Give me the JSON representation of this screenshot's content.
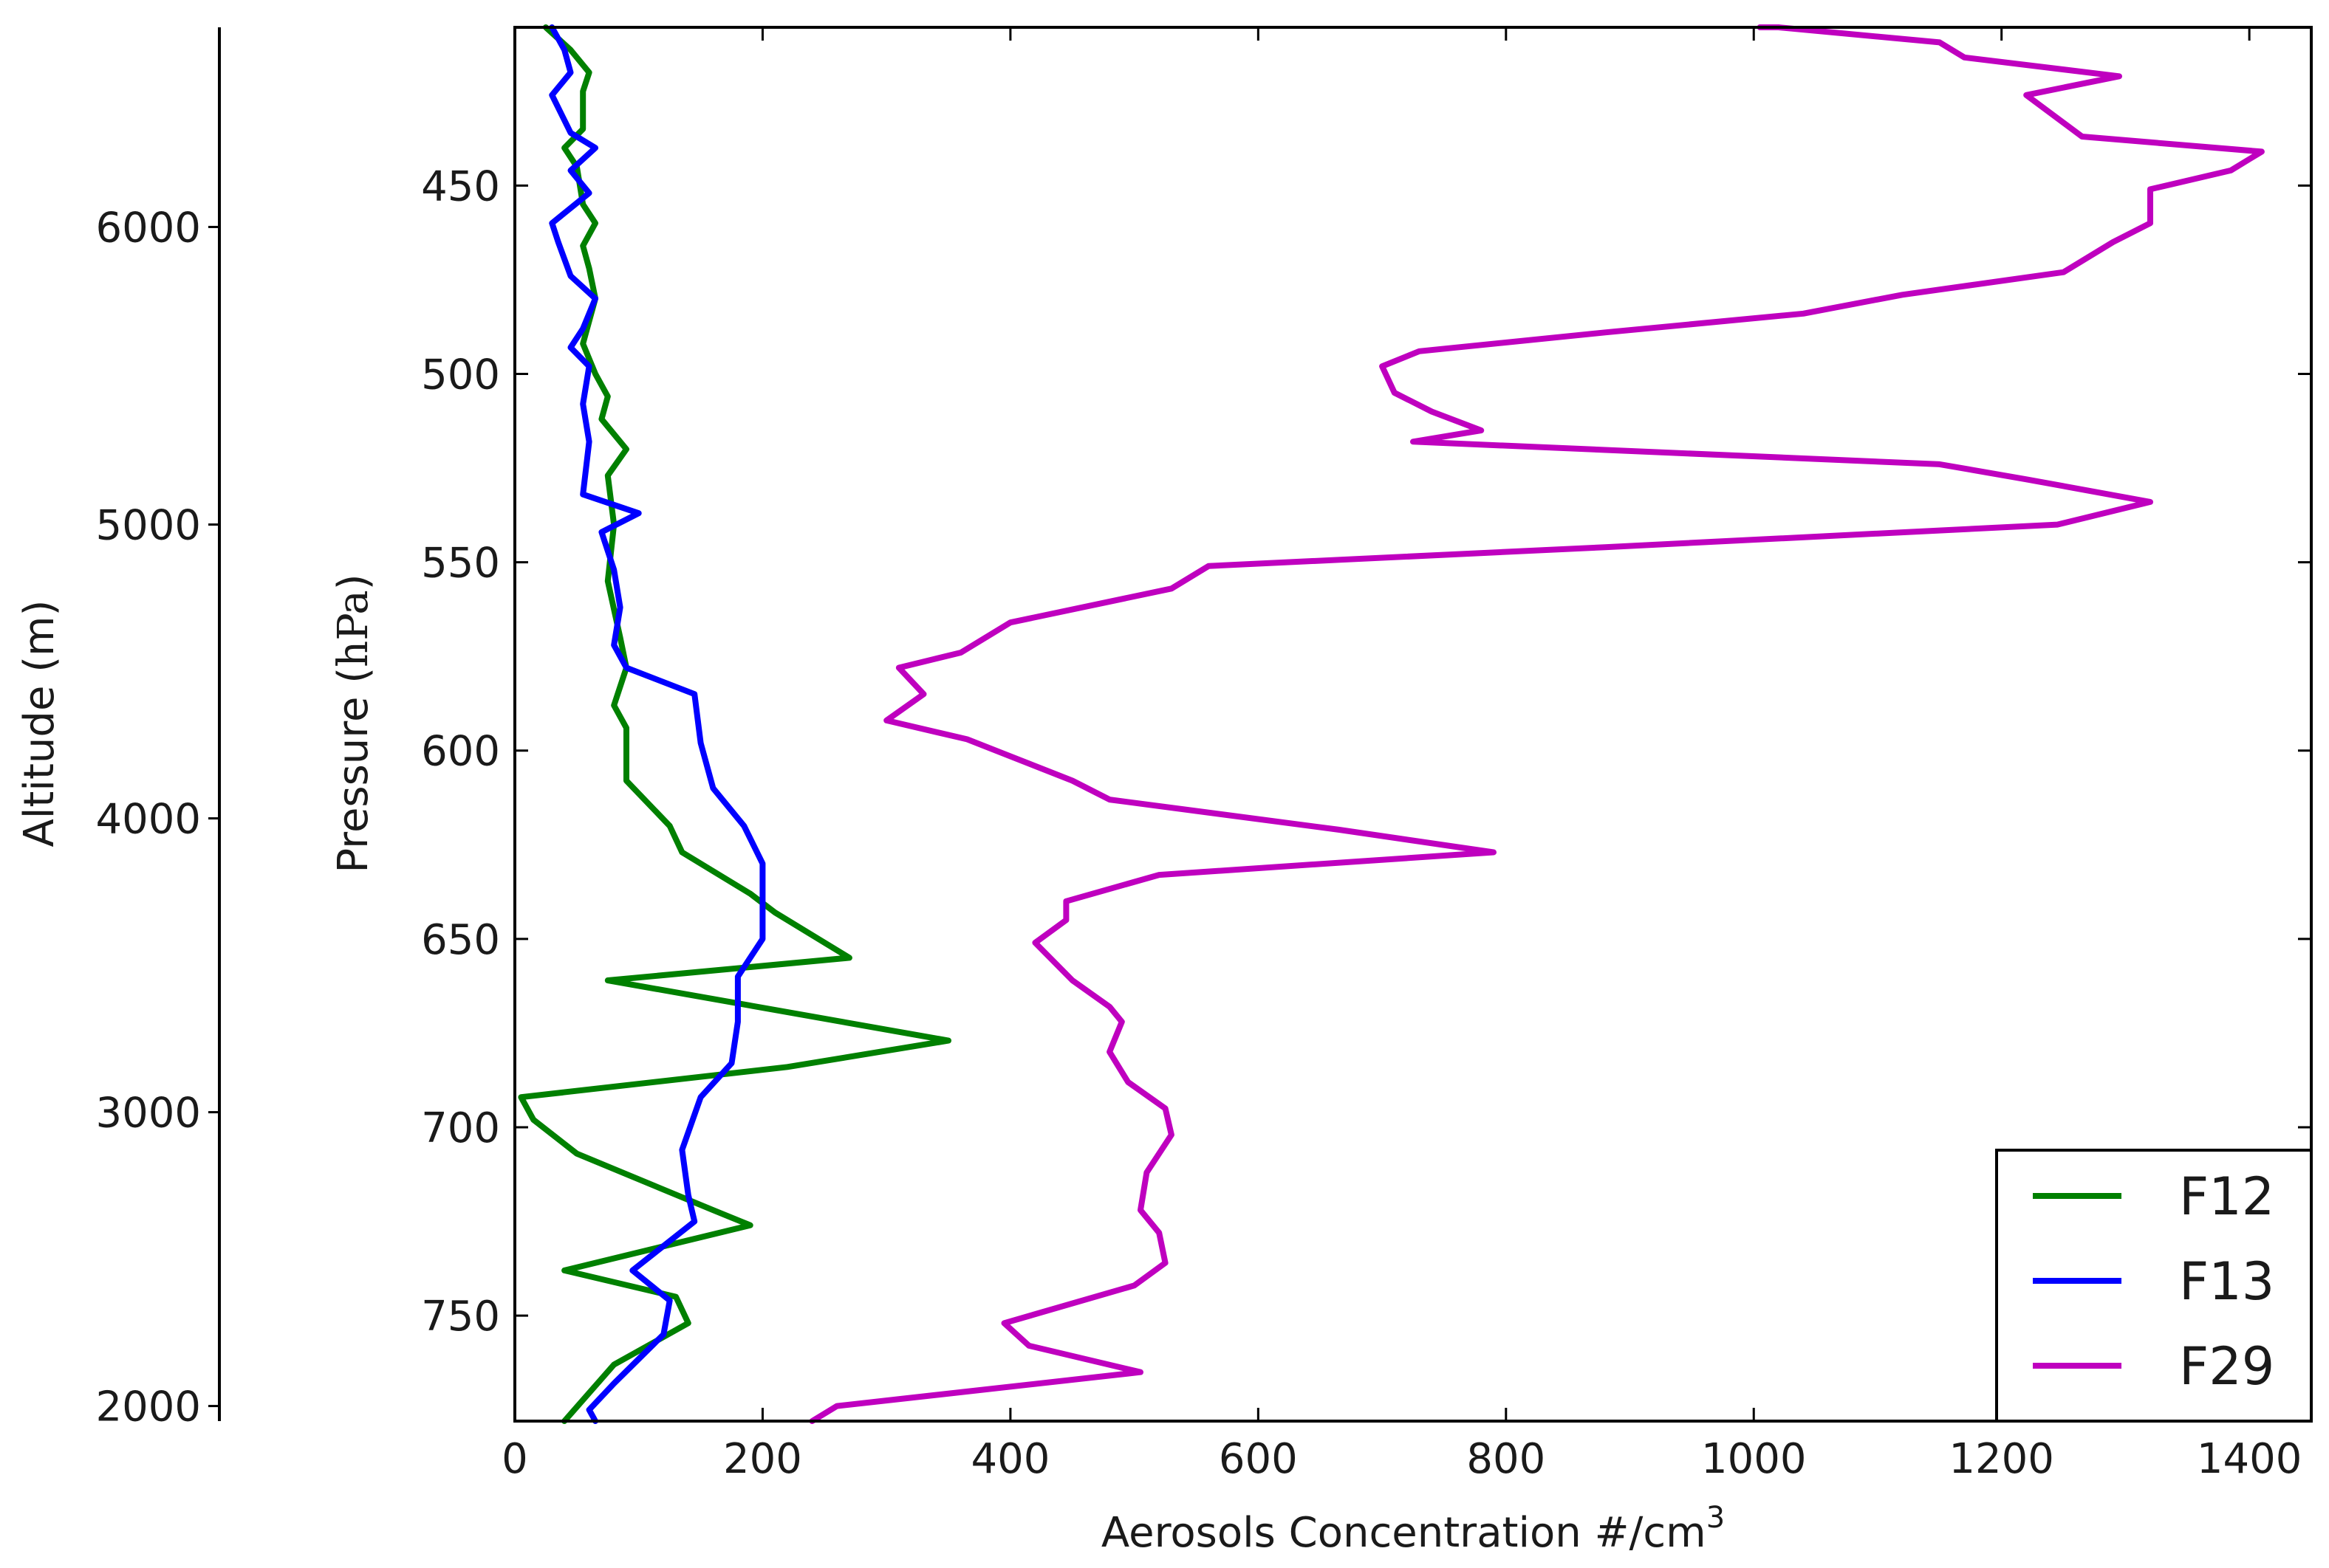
{
  "chart_data": {
    "type": "line",
    "xlabel": "Aerosols Concentration #/cm",
    "xlabel_superscript": "3",
    "ylabel_prefix": "Pressure (",
    "ylabel_unit": "hPa",
    "ylabel_suffix": ")",
    "y2label": "Altitude (m)",
    "xlim": [
      0,
      1450
    ],
    "ylim": [
      408,
      778
    ],
    "y_inverted": true,
    "x_ticks": [
      0,
      200,
      400,
      600,
      800,
      1000,
      1200,
      1400
    ],
    "y_ticks": [
      450,
      500,
      550,
      600,
      650,
      700,
      750
    ],
    "altitude_ticks": [
      {
        "label": "6000",
        "pressure": 461
      },
      {
        "label": "5000",
        "pressure": 540
      },
      {
        "label": "4000",
        "pressure": 618
      },
      {
        "label": "3000",
        "pressure": 696
      },
      {
        "label": "2000",
        "pressure": 774
      }
    ],
    "grid": false,
    "legend_position": "bottom-right",
    "series": [
      {
        "name": "F12",
        "color": "#008000",
        "points": [
          [
            25,
            408
          ],
          [
            45,
            414
          ],
          [
            60,
            420
          ],
          [
            55,
            425
          ],
          [
            55,
            435
          ],
          [
            40,
            440
          ],
          [
            50,
            445
          ],
          [
            55,
            455
          ],
          [
            65,
            460
          ],
          [
            55,
            466
          ],
          [
            60,
            472
          ],
          [
            65,
            480
          ],
          [
            55,
            492
          ],
          [
            65,
            500
          ],
          [
            75,
            506
          ],
          [
            70,
            512
          ],
          [
            90,
            520
          ],
          [
            75,
            527
          ],
          [
            80,
            540
          ],
          [
            75,
            555
          ],
          [
            85,
            570
          ],
          [
            90,
            578
          ],
          [
            80,
            588
          ],
          [
            90,
            594
          ],
          [
            90,
            608
          ],
          [
            125,
            620
          ],
          [
            135,
            627
          ],
          [
            190,
            638
          ],
          [
            210,
            643
          ],
          [
            270,
            655
          ],
          [
            75,
            661
          ],
          [
            350,
            677
          ],
          [
            220,
            684
          ],
          [
            5,
            692
          ],
          [
            15,
            698
          ],
          [
            50,
            707
          ],
          [
            160,
            722
          ],
          [
            190,
            726
          ],
          [
            40,
            738
          ],
          [
            130,
            745
          ],
          [
            140,
            752
          ],
          [
            80,
            763
          ],
          [
            40,
            778
          ]
        ]
      },
      {
        "name": "F13",
        "color": "#0000ff",
        "points": [
          [
            30,
            408
          ],
          [
            40,
            414
          ],
          [
            45,
            420
          ],
          [
            30,
            426
          ],
          [
            45,
            436
          ],
          [
            65,
            440
          ],
          [
            45,
            446
          ],
          [
            60,
            452
          ],
          [
            30,
            460
          ],
          [
            35,
            465
          ],
          [
            45,
            474
          ],
          [
            65,
            480
          ],
          [
            55,
            488
          ],
          [
            45,
            493
          ],
          [
            60,
            498
          ],
          [
            55,
            508
          ],
          [
            60,
            518
          ],
          [
            55,
            532
          ],
          [
            100,
            537
          ],
          [
            70,
            542
          ],
          [
            80,
            552
          ],
          [
            85,
            562
          ],
          [
            80,
            572
          ],
          [
            90,
            578
          ],
          [
            145,
            585
          ],
          [
            150,
            598
          ],
          [
            160,
            610
          ],
          [
            185,
            620
          ],
          [
            200,
            630
          ],
          [
            200,
            650
          ],
          [
            180,
            660
          ],
          [
            180,
            672
          ],
          [
            175,
            683
          ],
          [
            150,
            692
          ],
          [
            135,
            706
          ],
          [
            140,
            718
          ],
          [
            145,
            725
          ],
          [
            95,
            738
          ],
          [
            125,
            746
          ],
          [
            120,
            755
          ],
          [
            80,
            768
          ],
          [
            60,
            775
          ],
          [
            65,
            778
          ]
        ]
      },
      {
        "name": "F29",
        "color": "#bf00bf",
        "points": [
          [
            1005,
            408
          ],
          [
            1020,
            408
          ],
          [
            1150,
            412
          ],
          [
            1170,
            416
          ],
          [
            1295,
            421
          ],
          [
            1220,
            426
          ],
          [
            1265,
            437
          ],
          [
            1410,
            441
          ],
          [
            1385,
            446
          ],
          [
            1320,
            451
          ],
          [
            1320,
            460
          ],
          [
            1290,
            465
          ],
          [
            1250,
            473
          ],
          [
            1120,
            479
          ],
          [
            1040,
            484
          ],
          [
            880,
            489
          ],
          [
            730,
            494
          ],
          [
            700,
            498
          ],
          [
            710,
            505
          ],
          [
            740,
            510
          ],
          [
            780,
            515
          ],
          [
            725,
            518
          ],
          [
            1150,
            524
          ],
          [
            1220,
            528
          ],
          [
            1320,
            534
          ],
          [
            1245,
            540
          ],
          [
            880,
            546
          ],
          [
            560,
            551
          ],
          [
            530,
            557
          ],
          [
            400,
            566
          ],
          [
            360,
            574
          ],
          [
            310,
            578
          ],
          [
            330,
            585
          ],
          [
            300,
            592
          ],
          [
            365,
            597
          ],
          [
            450,
            608
          ],
          [
            480,
            613
          ],
          [
            665,
            621
          ],
          [
            790,
            627
          ],
          [
            520,
            633
          ],
          [
            445,
            640
          ],
          [
            445,
            645
          ],
          [
            420,
            651
          ],
          [
            450,
            661
          ],
          [
            480,
            668
          ],
          [
            490,
            672
          ],
          [
            480,
            680
          ],
          [
            495,
            688
          ],
          [
            525,
            695
          ],
          [
            530,
            702
          ],
          [
            510,
            712
          ],
          [
            505,
            722
          ],
          [
            520,
            728
          ],
          [
            525,
            736
          ],
          [
            500,
            742
          ],
          [
            395,
            752
          ],
          [
            415,
            758
          ],
          [
            505,
            765
          ],
          [
            260,
            774
          ],
          [
            240,
            778
          ]
        ]
      }
    ]
  }
}
